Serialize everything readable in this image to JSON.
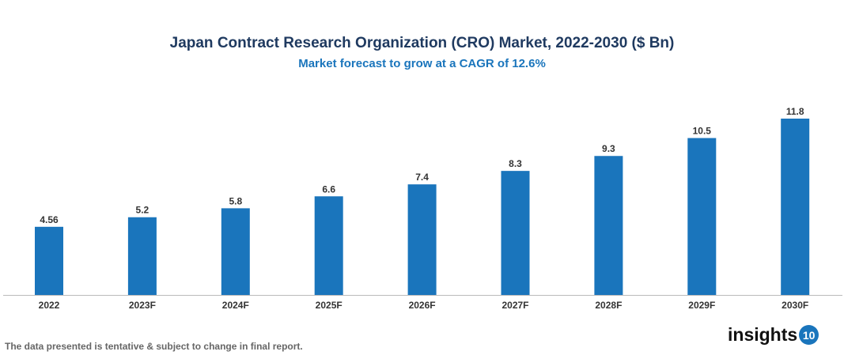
{
  "chart_data": {
    "type": "bar",
    "title": "Japan Contract Research Organization (CRO) Market, 2022-2030 ($ Bn)",
    "subtitle": "Market forecast to grow at a CAGR of 12.6%",
    "categories": [
      "2022",
      "2023F",
      "2024F",
      "2025F",
      "2026F",
      "2027F",
      "2028F",
      "2029F",
      "2030F"
    ],
    "values": [
      4.56,
      5.2,
      5.8,
      6.6,
      7.4,
      8.3,
      9.3,
      10.5,
      11.8
    ],
    "data_labels": [
      "4.56",
      "5.2",
      "5.8",
      "6.6",
      "7.4",
      "8.3",
      "9.3",
      "10.5",
      "11.8"
    ],
    "xlabel": "",
    "ylabel": "",
    "ylim": [
      0,
      11.8
    ],
    "grid": false,
    "bar_color": "#1a75bc"
  },
  "footer": "The data presented is tentative & subject to change in final report.",
  "logo": {
    "text": "insights",
    "badge": "10"
  }
}
